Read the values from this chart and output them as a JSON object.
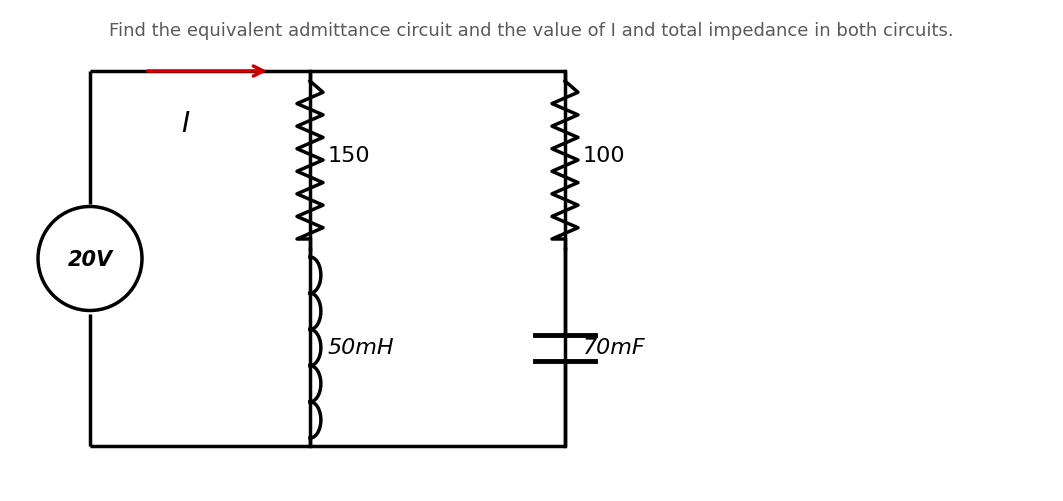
{
  "title": "Find the equivalent admittance circuit and the value of I and total impedance in both circuits.",
  "title_color": "#5a5a5a",
  "title_fontsize": 13,
  "bg_color": "#ffffff",
  "circuit_line_color": "#000000",
  "arrow_color": "#cc0000",
  "source_label": "20V",
  "current_label": "I",
  "r1_label": "150",
  "l1_label": "50mH",
  "r2_label": "100",
  "c1_label": "70mF",
  "line_width": 2.5,
  "fig_width": 10.63,
  "fig_height": 5.02,
  "dpi": 100
}
